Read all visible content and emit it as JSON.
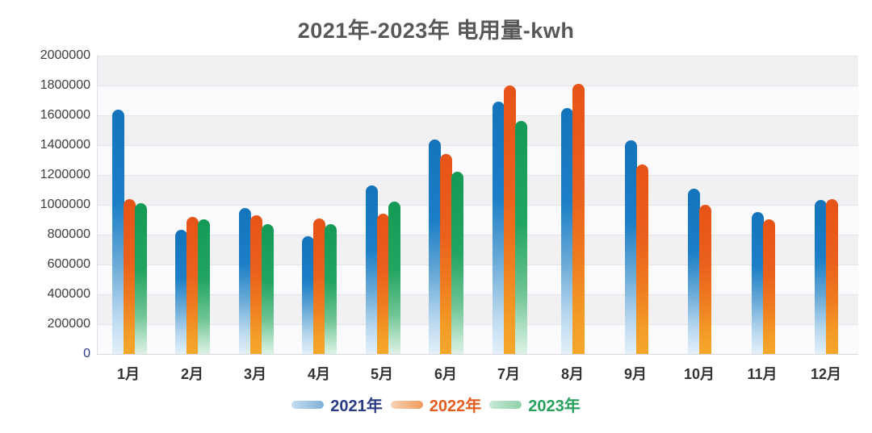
{
  "title": "2021年-2023年 电用量-kwh",
  "chart_data": {
    "type": "bar",
    "categories": [
      "1月",
      "2月",
      "3月",
      "4月",
      "5月",
      "6月",
      "7月",
      "8月",
      "9月",
      "10月",
      "11月",
      "12月"
    ],
    "series": [
      {
        "name": "2021年",
        "values": [
          1640000,
          830000,
          980000,
          790000,
          1130000,
          1440000,
          1690000,
          1650000,
          1430000,
          1110000,
          950000,
          1030000
        ]
      },
      {
        "name": "2022年",
        "values": [
          1040000,
          920000,
          930000,
          910000,
          940000,
          1340000,
          1800000,
          1810000,
          1270000,
          1000000,
          900000,
          1040000
        ]
      },
      {
        "name": "2023年",
        "values": [
          1010000,
          900000,
          870000,
          870000,
          1020000,
          1220000,
          1560000,
          null,
          null,
          null,
          null,
          null
        ]
      }
    ],
    "ylim": [
      0,
      2000000
    ],
    "ytick_step": 200000,
    "yticks": [
      "2000000",
      "1800000",
      "1600000",
      "1400000",
      "1200000",
      "1000000",
      "800000",
      "600000",
      "400000",
      "200000",
      "0"
    ],
    "xlabel": "",
    "ylabel": "",
    "grid": true,
    "legend_position": "bottom"
  },
  "colors": {
    "series": [
      {
        "name": "2021年",
        "bar_top": "#1474bc",
        "bar_bottom": "#e3f0fa",
        "swatch_from": "#c6ddef",
        "swatch_to": "#7fb0d8",
        "label_text": "#2b3a85"
      },
      {
        "name": "2022年",
        "bar_top": "#e75317",
        "bar_bottom": "#f4a72c",
        "swatch_from": "#f8d4b5",
        "swatch_to": "#f09a5c",
        "label_text": "#e45c1d"
      },
      {
        "name": "2023年",
        "bar_top": "#149a55",
        "bar_bottom": "#ddf1e6",
        "swatch_from": "#c6e9d4",
        "swatch_to": "#8ed2a8",
        "label_text": "#27a05c"
      }
    ],
    "title_text": "#585858",
    "tick_text": "#3d3d3d",
    "zero_tick_text": "#2b3a85",
    "band_gray": "#f1f1f4",
    "band_white": "#fbfbfd",
    "gridline": "#e4e4e9"
  }
}
